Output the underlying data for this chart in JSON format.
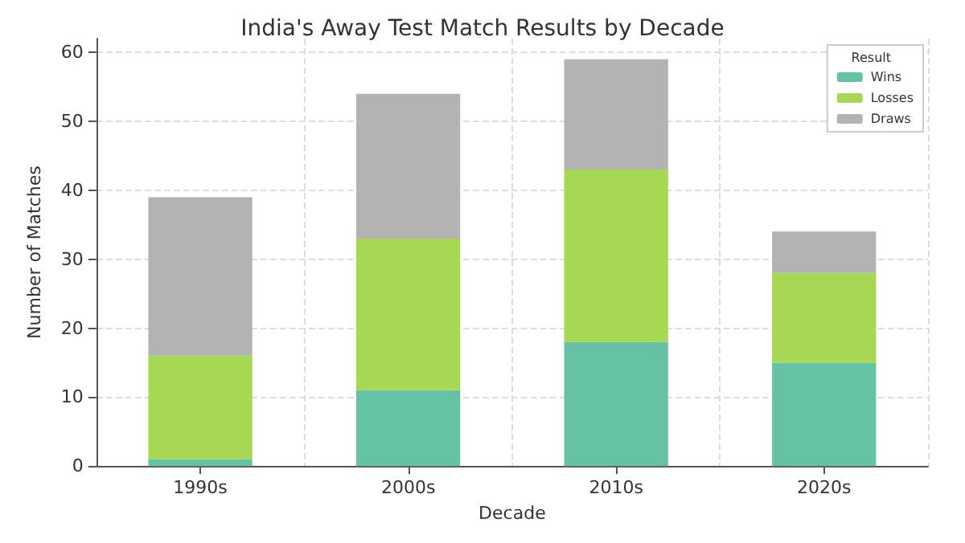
{
  "chart_data": {
    "type": "bar",
    "title": "India's Away Test Match Results by Decade",
    "xlabel": "Decade",
    "ylabel": "Number of Matches",
    "legend_title": "Result",
    "categories": [
      "1990s",
      "2000s",
      "2010s",
      "2020s"
    ],
    "stacked": true,
    "series": [
      {
        "name": "Wins",
        "color": "#66c2a5",
        "values": [
          1,
          11,
          18,
          15
        ]
      },
      {
        "name": "Losses",
        "color": "#a6d854",
        "values": [
          15,
          22,
          25,
          13
        ]
      },
      {
        "name": "Draws",
        "color": "#b3b3b3",
        "values": [
          23,
          21,
          16,
          6
        ]
      }
    ],
    "ylim": [
      0,
      62
    ],
    "yticks": [
      0,
      10,
      20,
      30,
      40,
      50,
      60
    ],
    "grid": true,
    "legend": "top right"
  }
}
